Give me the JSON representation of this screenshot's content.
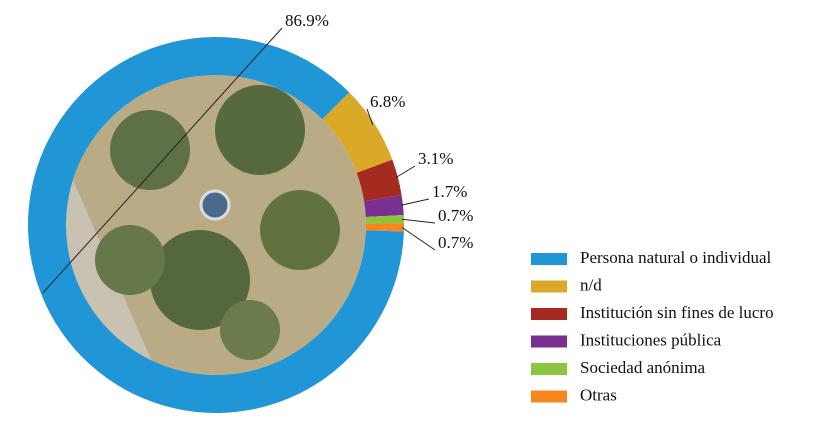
{
  "chart_data": {
    "type": "donut",
    "categories": [
      "Persona natural o individual",
      "n/d",
      "Institución sin fines de lucro",
      "Instituciones pública",
      "Sociedad anónima",
      "Otras"
    ],
    "values": [
      86.9,
      6.8,
      3.1,
      1.7,
      0.7,
      0.7
    ],
    "value_labels": [
      "86.9%",
      "6.8%",
      "3.1%",
      "1.7%",
      "0.7%",
      "0.7%"
    ],
    "colors": [
      "#2196d6",
      "#d9a927",
      "#a52a1f",
      "#7b2f91",
      "#8cc63f",
      "#f7861e"
    ],
    "legend": "right"
  }
}
